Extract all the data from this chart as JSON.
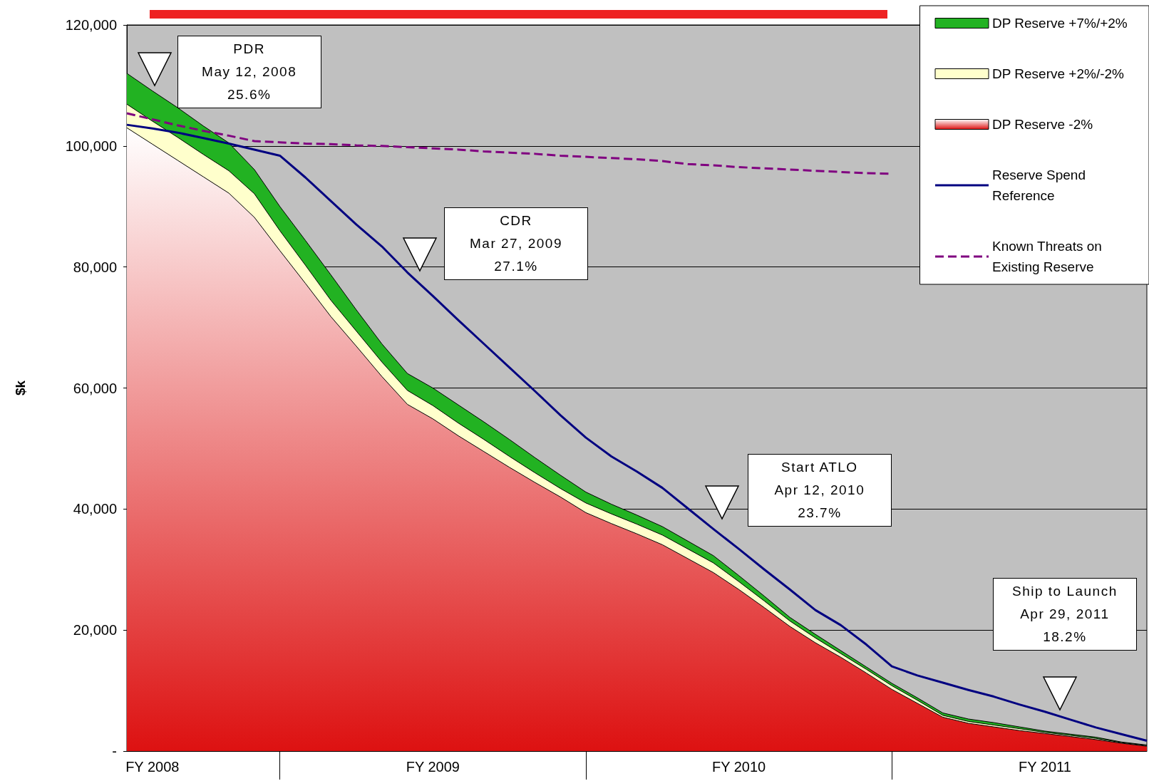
{
  "chart_data": {
    "type": "area",
    "ylabel": "$k",
    "categories": [
      null,
      "FY 2008",
      null,
      null,
      null,
      null,
      null,
      null,
      null,
      null,
      null,
      null,
      "FY 2009",
      null,
      null,
      null,
      null,
      null,
      null,
      null,
      null,
      null,
      null,
      null,
      "FY 2010",
      null,
      null,
      null,
      null,
      null,
      null,
      null,
      null,
      null,
      null,
      null,
      "FY 2011",
      null,
      null,
      null,
      null
    ],
    "stacked": true,
    "series": [
      {
        "name": "DP Reserve -2%",
        "color": "#dd1111",
        "values": [
          103000,
          100300,
          97600,
          94900,
          92200,
          88200,
          82700,
          77300,
          71800,
          66900,
          61900,
          57300,
          54900,
          52100,
          49500,
          46900,
          44400,
          42000,
          39400,
          37600,
          35900,
          34100,
          31800,
          29500,
          26700,
          23700,
          20600,
          17900,
          15500,
          12900,
          10200,
          7900,
          5600,
          4600,
          4000,
          3400,
          2900,
          2400,
          1900,
          1300,
          800
        ]
      },
      {
        "name": "DP Reserve +2%/-2%",
        "color": "#ffffcc",
        "values": [
          3900,
          3800,
          3800,
          3700,
          3700,
          3900,
          3300,
          3000,
          2700,
          2500,
          2400,
          2300,
          2200,
          2100,
          2000,
          1800,
          1600,
          1400,
          1600,
          1600,
          1600,
          1600,
          1600,
          1600,
          1300,
          1100,
          900,
          800,
          600,
          600,
          600,
          500,
          300,
          300,
          300,
          300,
          200,
          200,
          200,
          100,
          100
        ]
      },
      {
        "name": "DP Reserve +7%/+2%",
        "color": "#22b222",
        "values": [
          5100,
          5000,
          4900,
          4700,
          4600,
          4000,
          4000,
          4100,
          4200,
          3500,
          3000,
          2800,
          2900,
          3000,
          2900,
          2800,
          2500,
          2200,
          1800,
          1600,
          1500,
          1400,
          1300,
          1200,
          1000,
          800,
          600,
          600,
          500,
          400,
          400,
          400,
          400,
          400,
          400,
          300,
          200,
          200,
          200,
          100,
          100
        ]
      },
      {
        "name": "Reserve Spend Reference",
        "type": "line",
        "color": "#000080",
        "line_style": "solid",
        "values": [
          103500,
          102900,
          102200,
          101300,
          100400,
          99400,
          98400,
          94800,
          90900,
          87000,
          83400,
          79100,
          75200,
          71200,
          67300,
          63400,
          59500,
          55500,
          51800,
          48700,
          46200,
          43500,
          40100,
          36700,
          33400,
          30000,
          26700,
          23300,
          20800,
          17600,
          14000,
          12500,
          11300,
          10100,
          9000,
          7700,
          6500,
          5200,
          3900,
          2800,
          1700
        ]
      },
      {
        "name": "Known Threats on Existing Reserve",
        "type": "line",
        "color": "#800080",
        "line_style": "dashed",
        "values": [
          105400,
          104400,
          103400,
          102500,
          101700,
          100800,
          100600,
          100400,
          100300,
          100100,
          100000,
          99800,
          99600,
          99400,
          99100,
          98900,
          98700,
          98400,
          98200,
          98000,
          97800,
          97500,
          97000,
          96800,
          96500,
          96300,
          96100,
          95900,
          95700,
          95500,
          95400,
          null,
          null,
          null,
          null,
          null,
          null,
          null,
          null,
          null,
          null
        ]
      }
    ],
    "ylim": [
      0,
      120000
    ],
    "yticks": [
      {
        "value": 0,
        "label": "-"
      },
      {
        "value": 20000,
        "label": "20,000"
      },
      {
        "value": 40000,
        "label": "40,000"
      },
      {
        "value": 60000,
        "label": "60,000"
      },
      {
        "value": 80000,
        "label": "80,000"
      },
      {
        "value": 100000,
        "label": "100,000"
      },
      {
        "value": 120000,
        "label": "120,000"
      }
    ],
    "grid": "y",
    "legend": "top right",
    "marker": "none",
    "annotations": [
      "PDR\nMay 12, 2008\n25.6%",
      "CDR\nMar 27, 2009\n27.1%",
      "Start ATLO\nApr 12, 2010\n23.7%",
      "Ship to Launch\nApr 29, 2011\n18.2%"
    ]
  }
}
